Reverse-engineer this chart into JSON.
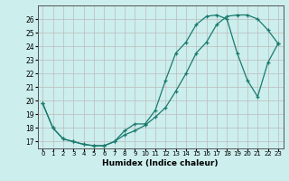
{
  "title": "",
  "xlabel": "Humidex (Indice chaleur)",
  "background_color": "#cceeed",
  "grid_color": "#bbbbbb",
  "line_color": "#1a7a6e",
  "xlim": [
    -0.5,
    23.5
  ],
  "ylim": [
    16.5,
    27.0
  ],
  "xticks": [
    0,
    1,
    2,
    3,
    4,
    5,
    6,
    7,
    8,
    9,
    10,
    11,
    12,
    13,
    14,
    15,
    16,
    17,
    18,
    19,
    20,
    21,
    22,
    23
  ],
  "yticks": [
    17,
    18,
    19,
    20,
    21,
    22,
    23,
    24,
    25,
    26
  ],
  "line1_x": [
    0,
    1,
    2,
    3,
    4,
    5,
    6,
    7,
    8,
    9,
    10,
    11,
    12,
    13,
    14,
    15,
    16,
    17,
    18,
    19,
    20,
    21,
    22,
    23
  ],
  "line1_y": [
    19.8,
    18.0,
    17.2,
    17.0,
    16.8,
    16.7,
    16.7,
    17.0,
    17.5,
    17.8,
    18.2,
    18.8,
    19.5,
    20.7,
    22.0,
    23.5,
    24.3,
    25.6,
    26.2,
    26.3,
    26.3,
    26.0,
    25.2,
    24.2
  ],
  "line2_x": [
    0,
    1,
    2,
    3,
    4,
    5,
    6,
    7,
    8,
    9,
    10,
    11,
    12,
    13,
    14,
    15,
    16,
    17,
    18,
    19,
    20,
    21,
    22,
    23
  ],
  "line2_y": [
    19.8,
    18.0,
    17.2,
    17.0,
    16.8,
    16.7,
    16.7,
    17.0,
    17.8,
    18.3,
    18.3,
    19.3,
    21.5,
    23.5,
    24.3,
    25.6,
    26.2,
    26.3,
    26.0,
    23.5,
    21.5,
    20.3,
    22.8,
    24.2
  ]
}
